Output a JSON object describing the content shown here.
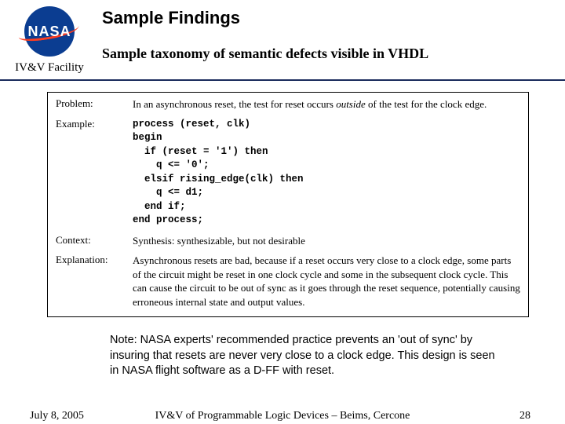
{
  "header": {
    "logo_text": "NASA",
    "facility": "IV&V Facility",
    "title": "Sample Findings",
    "subtitle": "Sample taxonomy of semantic defects visible in VHDL"
  },
  "box": {
    "problem_label": "Problem:",
    "problem_pre": "In an asynchronous reset, the test for reset occurs ",
    "problem_italic": "outside",
    "problem_post": " of the test for the clock edge.",
    "example_label": "Example:",
    "code": "process (reset, clk)\nbegin\n  if (reset = '1') then\n    q <= '0';\n  elsif rising_edge(clk) then\n    q <= d1;\n  end if;\nend process;",
    "context_label": "Context:",
    "context": "Synthesis:  synthesizable, but not desirable",
    "explanation_label": "Explanation:",
    "explanation": "Asynchronous resets are bad, because if a reset occurs very close to a clock edge, some parts of the circuit might be reset in one clock cycle and some in the subsequent clock cycle. This can cause the circuit to be out of sync as it goes through the reset sequence, potentially causing erroneous internal state and output values."
  },
  "note": "Note: NASA experts' recommended practice prevents an 'out of sync' by insuring that resets are never very close to a clock edge. This design is seen in NASA flight software as a D-FF with reset.",
  "footer": {
    "date": "July 8, 2005",
    "center": "IV&V of Programmable Logic Devices – Beims, Cercone",
    "page": "28"
  },
  "colors": {
    "rule": "#1a2b5c",
    "nasa_blue": "#0b3d91",
    "nasa_red": "#fc3d21",
    "background": "#ffffff"
  }
}
